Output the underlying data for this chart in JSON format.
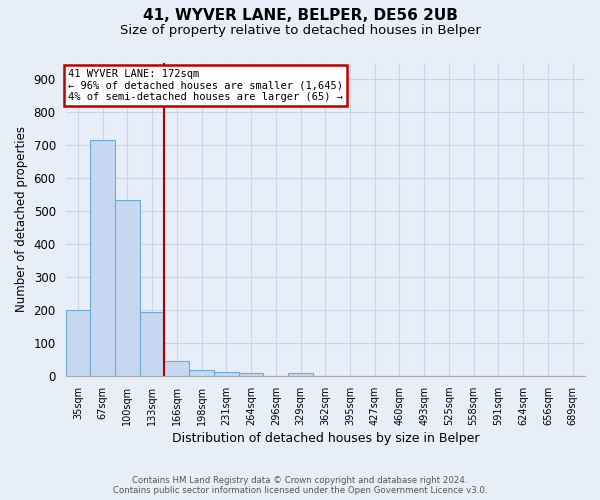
{
  "title": "41, WYVER LANE, BELPER, DE56 2UB",
  "subtitle": "Size of property relative to detached houses in Belper",
  "xlabel": "Distribution of detached houses by size in Belper",
  "ylabel": "Number of detached properties",
  "categories": [
    "35sqm",
    "67sqm",
    "100sqm",
    "133sqm",
    "166sqm",
    "198sqm",
    "231sqm",
    "264sqm",
    "296sqm",
    "329sqm",
    "362sqm",
    "395sqm",
    "427sqm",
    "460sqm",
    "493sqm",
    "525sqm",
    "558sqm",
    "591sqm",
    "624sqm",
    "656sqm",
    "689sqm"
  ],
  "values": [
    200,
    714,
    534,
    193,
    44,
    18,
    13,
    9,
    0,
    9,
    0,
    0,
    0,
    0,
    0,
    0,
    0,
    0,
    0,
    0,
    0
  ],
  "bar_color": "#c5d8f0",
  "bar_edge_color": "#6aaad4",
  "vline_x": 3.5,
  "annotation_line1": "41 WYVER LANE: 172sqm",
  "annotation_line2": "← 96% of detached houses are smaller (1,645)",
  "annotation_line3": "4% of semi-detached houses are larger (65) →",
  "annotation_box_color": "#bb0000",
  "annotation_bg": "white",
  "vline_color": "#aa0000",
  "ylim": [
    0,
    950
  ],
  "yticks": [
    0,
    100,
    200,
    300,
    400,
    500,
    600,
    700,
    800,
    900
  ],
  "footer": "Contains HM Land Registry data © Crown copyright and database right 2024.\nContains public sector information licensed under the Open Government Licence v3.0.",
  "background_color": "#e8eef8",
  "grid_color": "#c8d4e8",
  "title_fontsize": 11,
  "subtitle_fontsize": 9.5,
  "bar_width": 1.0
}
